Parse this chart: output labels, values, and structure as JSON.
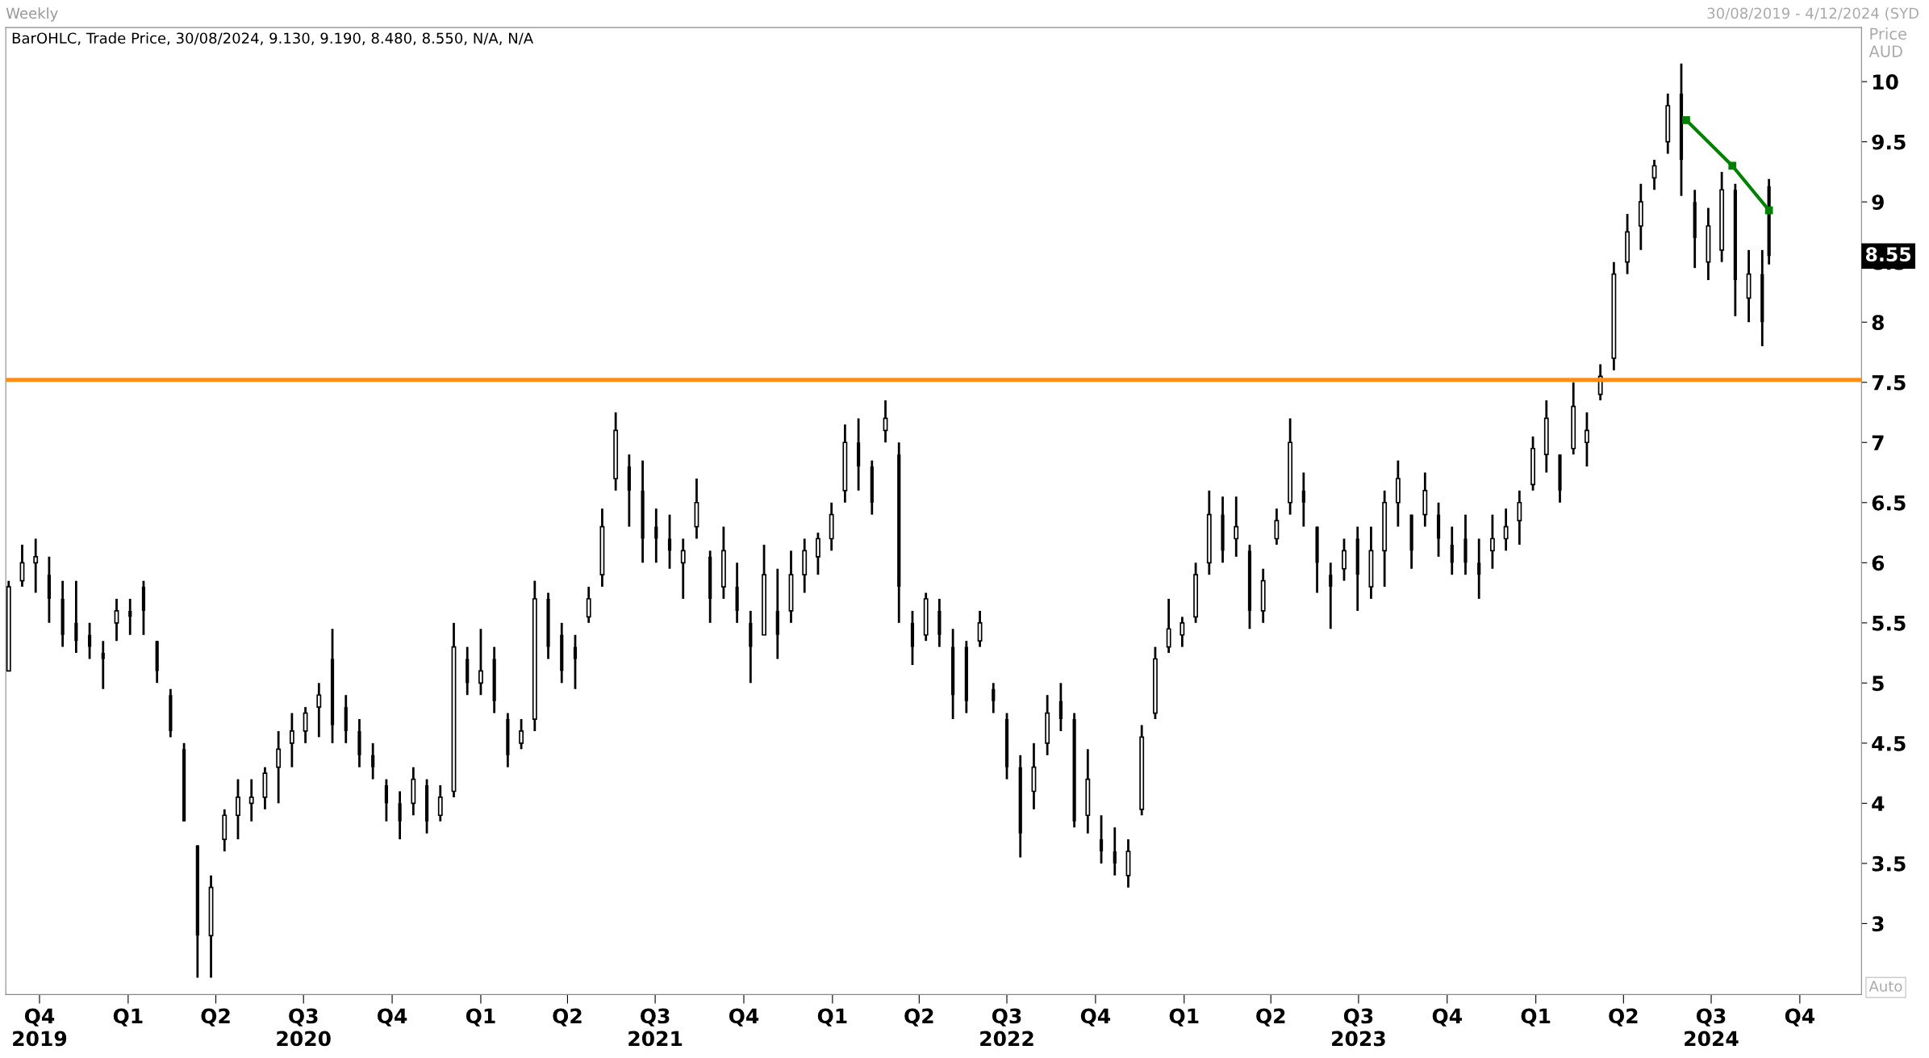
{
  "chart_data": {
    "type": "candlestick",
    "title": "Weekly",
    "subtitle": "BarOHLC, Trade Price, 30/08/2024, 9.130, 9.190, 8.480, 8.550, N/A, N/A",
    "ylabel": "Price\nAUD",
    "color": "#000000",
    "x": [
      "2019-08-30",
      "2019-09-13",
      "2019-09-27",
      "2019-10-11",
      "2019-10-25",
      "2019-11-08",
      "2019-11-22",
      "2019-12-06",
      "2019-12-20",
      "2020-01-03",
      "2020-01-17",
      "2020-01-31",
      "2020-02-14",
      "2020-02-28",
      "2020-03-13",
      "2020-03-27",
      "2020-04-10",
      "2020-04-24",
      "2020-05-08",
      "2020-05-22",
      "2020-06-05",
      "2020-06-19",
      "2020-07-03",
      "2020-07-17",
      "2020-07-31",
      "2020-08-14",
      "2020-08-28",
      "2020-09-11",
      "2020-09-25",
      "2020-10-09",
      "2020-10-23",
      "2020-11-06",
      "2020-11-20",
      "2020-12-04",
      "2020-12-18",
      "2021-01-01",
      "2021-01-15",
      "2021-01-29",
      "2021-02-12",
      "2021-02-26",
      "2021-03-12",
      "2021-03-26",
      "2021-04-09",
      "2021-04-23",
      "2021-05-07",
      "2021-05-21",
      "2021-06-04",
      "2021-06-18",
      "2021-07-02",
      "2021-07-16",
      "2021-07-30",
      "2021-08-13",
      "2021-08-27",
      "2021-09-10",
      "2021-09-24",
      "2021-10-08",
      "2021-10-22",
      "2021-11-05",
      "2021-11-19",
      "2021-12-03",
      "2021-12-17",
      "2021-12-31",
      "2022-01-14",
      "2022-01-28",
      "2022-02-11",
      "2022-02-25",
      "2022-03-11",
      "2022-03-25",
      "2022-04-08",
      "2022-04-22",
      "2022-05-06",
      "2022-05-20",
      "2022-06-03",
      "2022-06-17",
      "2022-07-01",
      "2022-07-15",
      "2022-07-29",
      "2022-08-12",
      "2022-08-26",
      "2022-09-09",
      "2022-09-23",
      "2022-10-07",
      "2022-10-21",
      "2022-11-04",
      "2022-11-18",
      "2022-12-02",
      "2022-12-16",
      "2022-12-30",
      "2023-01-13",
      "2023-01-27",
      "2023-02-10",
      "2023-02-24",
      "2023-03-10",
      "2023-03-24",
      "2023-04-07",
      "2023-04-21",
      "2023-05-05",
      "2023-05-19",
      "2023-06-02",
      "2023-06-16",
      "2023-06-30",
      "2023-07-14",
      "2023-07-28",
      "2023-08-11",
      "2023-08-25",
      "2023-09-08",
      "2023-09-22",
      "2023-10-06",
      "2023-10-20",
      "2023-11-03",
      "2023-11-17",
      "2023-12-01",
      "2023-12-15",
      "2023-12-29",
      "2024-01-12",
      "2024-01-26",
      "2024-02-09",
      "2024-02-23",
      "2024-03-08",
      "2024-03-22",
      "2024-04-05",
      "2024-04-19",
      "2024-05-03",
      "2024-05-17",
      "2024-05-31",
      "2024-06-14",
      "2024-06-28",
      "2024-07-12",
      "2024-07-26",
      "2024-08-09",
      "2024-08-23",
      "2024-08-30"
    ],
    "ohlc": [
      [
        5.1,
        5.85,
        5.1,
        5.8
      ],
      [
        5.85,
        6.15,
        5.8,
        6.0
      ],
      [
        6.0,
        6.2,
        5.75,
        6.05
      ],
      [
        5.9,
        6.05,
        5.5,
        5.7
      ],
      [
        5.7,
        5.85,
        5.3,
        5.4
      ],
      [
        5.5,
        5.85,
        5.25,
        5.35
      ],
      [
        5.4,
        5.5,
        5.2,
        5.3
      ],
      [
        5.25,
        5.35,
        4.95,
        5.2
      ],
      [
        5.5,
        5.7,
        5.35,
        5.6
      ],
      [
        5.6,
        5.7,
        5.4,
        5.55
      ],
      [
        5.8,
        5.85,
        5.4,
        5.6
      ],
      [
        5.35,
        5.35,
        5.0,
        5.1
      ],
      [
        4.9,
        4.95,
        4.55,
        4.6
      ],
      [
        4.45,
        4.5,
        3.85,
        3.85
      ],
      [
        3.65,
        3.65,
        2.55,
        2.9
      ],
      [
        2.9,
        3.4,
        2.55,
        3.3
      ],
      [
        3.7,
        3.95,
        3.6,
        3.9
      ],
      [
        3.9,
        4.2,
        3.7,
        4.05
      ],
      [
        4.0,
        4.2,
        3.85,
        4.05
      ],
      [
        4.05,
        4.3,
        3.95,
        4.25
      ],
      [
        4.3,
        4.6,
        4.0,
        4.45
      ],
      [
        4.5,
        4.75,
        4.3,
        4.6
      ],
      [
        4.6,
        4.8,
        4.5,
        4.75
      ],
      [
        4.8,
        5.0,
        4.55,
        4.9
      ],
      [
        5.2,
        5.45,
        4.5,
        4.65
      ],
      [
        4.8,
        4.9,
        4.5,
        4.6
      ],
      [
        4.6,
        4.7,
        4.3,
        4.4
      ],
      [
        4.4,
        4.5,
        4.2,
        4.3
      ],
      [
        4.15,
        4.2,
        3.85,
        4.0
      ],
      [
        4.0,
        4.1,
        3.7,
        3.85
      ],
      [
        4.0,
        4.3,
        3.9,
        4.2
      ],
      [
        4.15,
        4.2,
        3.75,
        3.85
      ],
      [
        3.9,
        4.15,
        3.85,
        4.05
      ],
      [
        4.1,
        5.5,
        4.05,
        5.3
      ],
      [
        5.2,
        5.3,
        4.9,
        5.0
      ],
      [
        5.0,
        5.45,
        4.9,
        5.1
      ],
      [
        5.2,
        5.3,
        4.75,
        4.85
      ],
      [
        4.7,
        4.75,
        4.3,
        4.4
      ],
      [
        4.5,
        4.7,
        4.45,
        4.6
      ],
      [
        4.7,
        5.85,
        4.6,
        5.7
      ],
      [
        5.7,
        5.75,
        5.2,
        5.3
      ],
      [
        5.4,
        5.5,
        5.0,
        5.1
      ],
      [
        5.3,
        5.4,
        4.95,
        5.2
      ],
      [
        5.55,
        5.8,
        5.5,
        5.7
      ],
      [
        5.9,
        6.45,
        5.8,
        6.3
      ],
      [
        6.7,
        7.25,
        6.6,
        7.1
      ],
      [
        6.8,
        6.9,
        6.3,
        6.6
      ],
      [
        6.6,
        6.85,
        6.0,
        6.2
      ],
      [
        6.3,
        6.45,
        6.0,
        6.2
      ],
      [
        6.2,
        6.4,
        5.95,
        6.1
      ],
      [
        6.0,
        6.2,
        5.7,
        6.1
      ],
      [
        6.3,
        6.7,
        6.2,
        6.5
      ],
      [
        6.05,
        6.1,
        5.5,
        5.7
      ],
      [
        5.8,
        6.3,
        5.7,
        6.1
      ],
      [
        5.8,
        6.0,
        5.5,
        5.6
      ],
      [
        5.5,
        5.6,
        5.0,
        5.3
      ],
      [
        5.4,
        6.15,
        5.4,
        5.9
      ],
      [
        5.6,
        5.95,
        5.2,
        5.4
      ],
      [
        5.6,
        6.1,
        5.5,
        5.9
      ],
      [
        5.9,
        6.2,
        5.75,
        6.1
      ],
      [
        6.05,
        6.25,
        5.9,
        6.2
      ],
      [
        6.2,
        6.5,
        6.1,
        6.4
      ],
      [
        6.6,
        7.15,
        6.5,
        7.0
      ],
      [
        7.0,
        7.2,
        6.6,
        6.8
      ],
      [
        6.8,
        6.85,
        6.4,
        6.5
      ],
      [
        7.1,
        7.35,
        7.0,
        7.2
      ],
      [
        6.9,
        7.0,
        5.5,
        5.8
      ],
      [
        5.5,
        5.6,
        5.15,
        5.3
      ],
      [
        5.4,
        5.75,
        5.35,
        5.7
      ],
      [
        5.6,
        5.7,
        5.3,
        5.4
      ],
      [
        5.3,
        5.45,
        4.7,
        4.9
      ],
      [
        5.3,
        5.35,
        4.75,
        4.85
      ],
      [
        5.35,
        5.6,
        5.3,
        5.5
      ],
      [
        4.95,
        5.0,
        4.75,
        4.85
      ],
      [
        4.7,
        4.75,
        4.2,
        4.3
      ],
      [
        4.3,
        4.4,
        3.55,
        3.75
      ],
      [
        4.1,
        4.5,
        3.95,
        4.3
      ],
      [
        4.5,
        4.9,
        4.4,
        4.75
      ],
      [
        4.85,
        5.0,
        4.6,
        4.7
      ],
      [
        4.7,
        4.75,
        3.8,
        3.85
      ],
      [
        3.9,
        4.45,
        3.75,
        4.2
      ],
      [
        3.7,
        3.9,
        3.5,
        3.6
      ],
      [
        3.6,
        3.8,
        3.4,
        3.5
      ],
      [
        3.4,
        3.7,
        3.3,
        3.6
      ],
      [
        3.95,
        4.65,
        3.9,
        4.55
      ],
      [
        4.75,
        5.3,
        4.7,
        5.2
      ],
      [
        5.3,
        5.7,
        5.25,
        5.45
      ],
      [
        5.4,
        5.55,
        5.3,
        5.5
      ],
      [
        5.55,
        6.0,
        5.5,
        5.9
      ],
      [
        6.0,
        6.6,
        5.9,
        6.4
      ],
      [
        6.4,
        6.55,
        6.0,
        6.1
      ],
      [
        6.2,
        6.55,
        6.05,
        6.3
      ],
      [
        6.1,
        6.15,
        5.45,
        5.6
      ],
      [
        5.6,
        5.95,
        5.5,
        5.85
      ],
      [
        6.2,
        6.45,
        6.15,
        6.35
      ],
      [
        6.5,
        7.2,
        6.4,
        7.0
      ],
      [
        6.6,
        6.75,
        6.3,
        6.5
      ],
      [
        6.3,
        6.3,
        5.75,
        6.0
      ],
      [
        5.9,
        6.0,
        5.45,
        5.8
      ],
      [
        5.95,
        6.2,
        5.85,
        6.1
      ],
      [
        6.2,
        6.3,
        5.6,
        5.9
      ],
      [
        5.8,
        6.3,
        5.7,
        6.1
      ],
      [
        6.1,
        6.6,
        5.8,
        6.5
      ],
      [
        6.5,
        6.85,
        6.3,
        6.7
      ],
      [
        6.4,
        6.4,
        5.95,
        6.1
      ],
      [
        6.4,
        6.75,
        6.3,
        6.6
      ],
      [
        6.4,
        6.5,
        6.05,
        6.2
      ],
      [
        6.15,
        6.3,
        5.9,
        6.0
      ],
      [
        6.2,
        6.4,
        5.9,
        6.0
      ],
      [
        6.0,
        6.2,
        5.7,
        5.9
      ],
      [
        6.1,
        6.4,
        5.95,
        6.2
      ],
      [
        6.2,
        6.45,
        6.1,
        6.3
      ],
      [
        6.35,
        6.6,
        6.15,
        6.5
      ],
      [
        6.65,
        7.05,
        6.6,
        6.95
      ],
      [
        6.9,
        7.35,
        6.75,
        7.2
      ],
      [
        6.9,
        6.9,
        6.5,
        6.6
      ],
      [
        6.95,
        7.5,
        6.9,
        7.3
      ],
      [
        7.0,
        7.25,
        6.8,
        7.1
      ],
      [
        7.4,
        7.65,
        7.35,
        7.55
      ],
      [
        7.7,
        8.5,
        7.6,
        8.4
      ],
      [
        8.5,
        8.9,
        8.4,
        8.75
      ],
      [
        8.8,
        9.15,
        8.6,
        9.0
      ],
      [
        9.2,
        9.35,
        9.1,
        9.3
      ],
      [
        9.5,
        9.9,
        9.4,
        9.8
      ],
      [
        9.9,
        10.15,
        9.05,
        9.35
      ],
      [
        9.0,
        9.1,
        8.45,
        8.7
      ],
      [
        8.5,
        8.95,
        8.35,
        8.8
      ],
      [
        8.6,
        9.25,
        8.5,
        9.1
      ],
      [
        9.1,
        9.15,
        8.05,
        8.35
      ],
      [
        8.2,
        8.6,
        8.0,
        8.4
      ],
      [
        8.4,
        8.6,
        7.8,
        8.0
      ],
      [
        9.13,
        9.19,
        8.48,
        8.55
      ]
    ],
    "series": [
      {
        "type": "line",
        "color": "#008000",
        "marker": "square",
        "x": [
          "2024-06-05",
          "2024-07-23",
          "2024-08-30"
        ],
        "values": [
          9.68,
          9.3,
          8.93
        ]
      }
    ],
    "ref_lines": [
      {
        "axis": "y",
        "value": 7.52,
        "color": "#ff8c1a"
      }
    ],
    "xlim": [
      "2019-08-27",
      "2024-12-04"
    ],
    "xticks": [
      {
        "value": "2019-10-01",
        "label": "Q4\n2019"
      },
      {
        "value": "2020-01-01",
        "label": "Q1"
      },
      {
        "value": "2020-04-01",
        "label": "Q2"
      },
      {
        "value": "2020-07-01",
        "label": "Q3\n2020"
      },
      {
        "value": "2020-10-01",
        "label": "Q4"
      },
      {
        "value": "2021-01-01",
        "label": "Q1"
      },
      {
        "value": "2021-04-01",
        "label": "Q2"
      },
      {
        "value": "2021-07-01",
        "label": "Q3\n2021"
      },
      {
        "value": "2021-10-01",
        "label": "Q4"
      },
      {
        "value": "2022-01-01",
        "label": "Q1"
      },
      {
        "value": "2022-04-01",
        "label": "Q2"
      },
      {
        "value": "2022-07-01",
        "label": "Q3\n2022"
      },
      {
        "value": "2022-10-01",
        "label": "Q4"
      },
      {
        "value": "2023-01-01",
        "label": "Q1"
      },
      {
        "value": "2023-04-01",
        "label": "Q2"
      },
      {
        "value": "2023-07-01",
        "label": "Q3\n2023"
      },
      {
        "value": "2023-10-01",
        "label": "Q4"
      },
      {
        "value": "2024-01-01",
        "label": "Q1"
      },
      {
        "value": "2024-04-01",
        "label": "Q2"
      },
      {
        "value": "2024-07-01",
        "label": "Q3\n2024"
      },
      {
        "value": "2024-10-01",
        "label": "Q4"
      }
    ],
    "ylim": [
      2.41,
      10.45
    ],
    "yticks": [
      3,
      3.5,
      4,
      4.5,
      5,
      5.5,
      6,
      6.5,
      7,
      7.5,
      8,
      8.5,
      9,
      9.5,
      10
    ],
    "annotations": [
      "8.55",
      "30/08/2019 - 4/12/2024 (SYD",
      "Auto"
    ],
    "grid": false,
    "legend": false
  }
}
